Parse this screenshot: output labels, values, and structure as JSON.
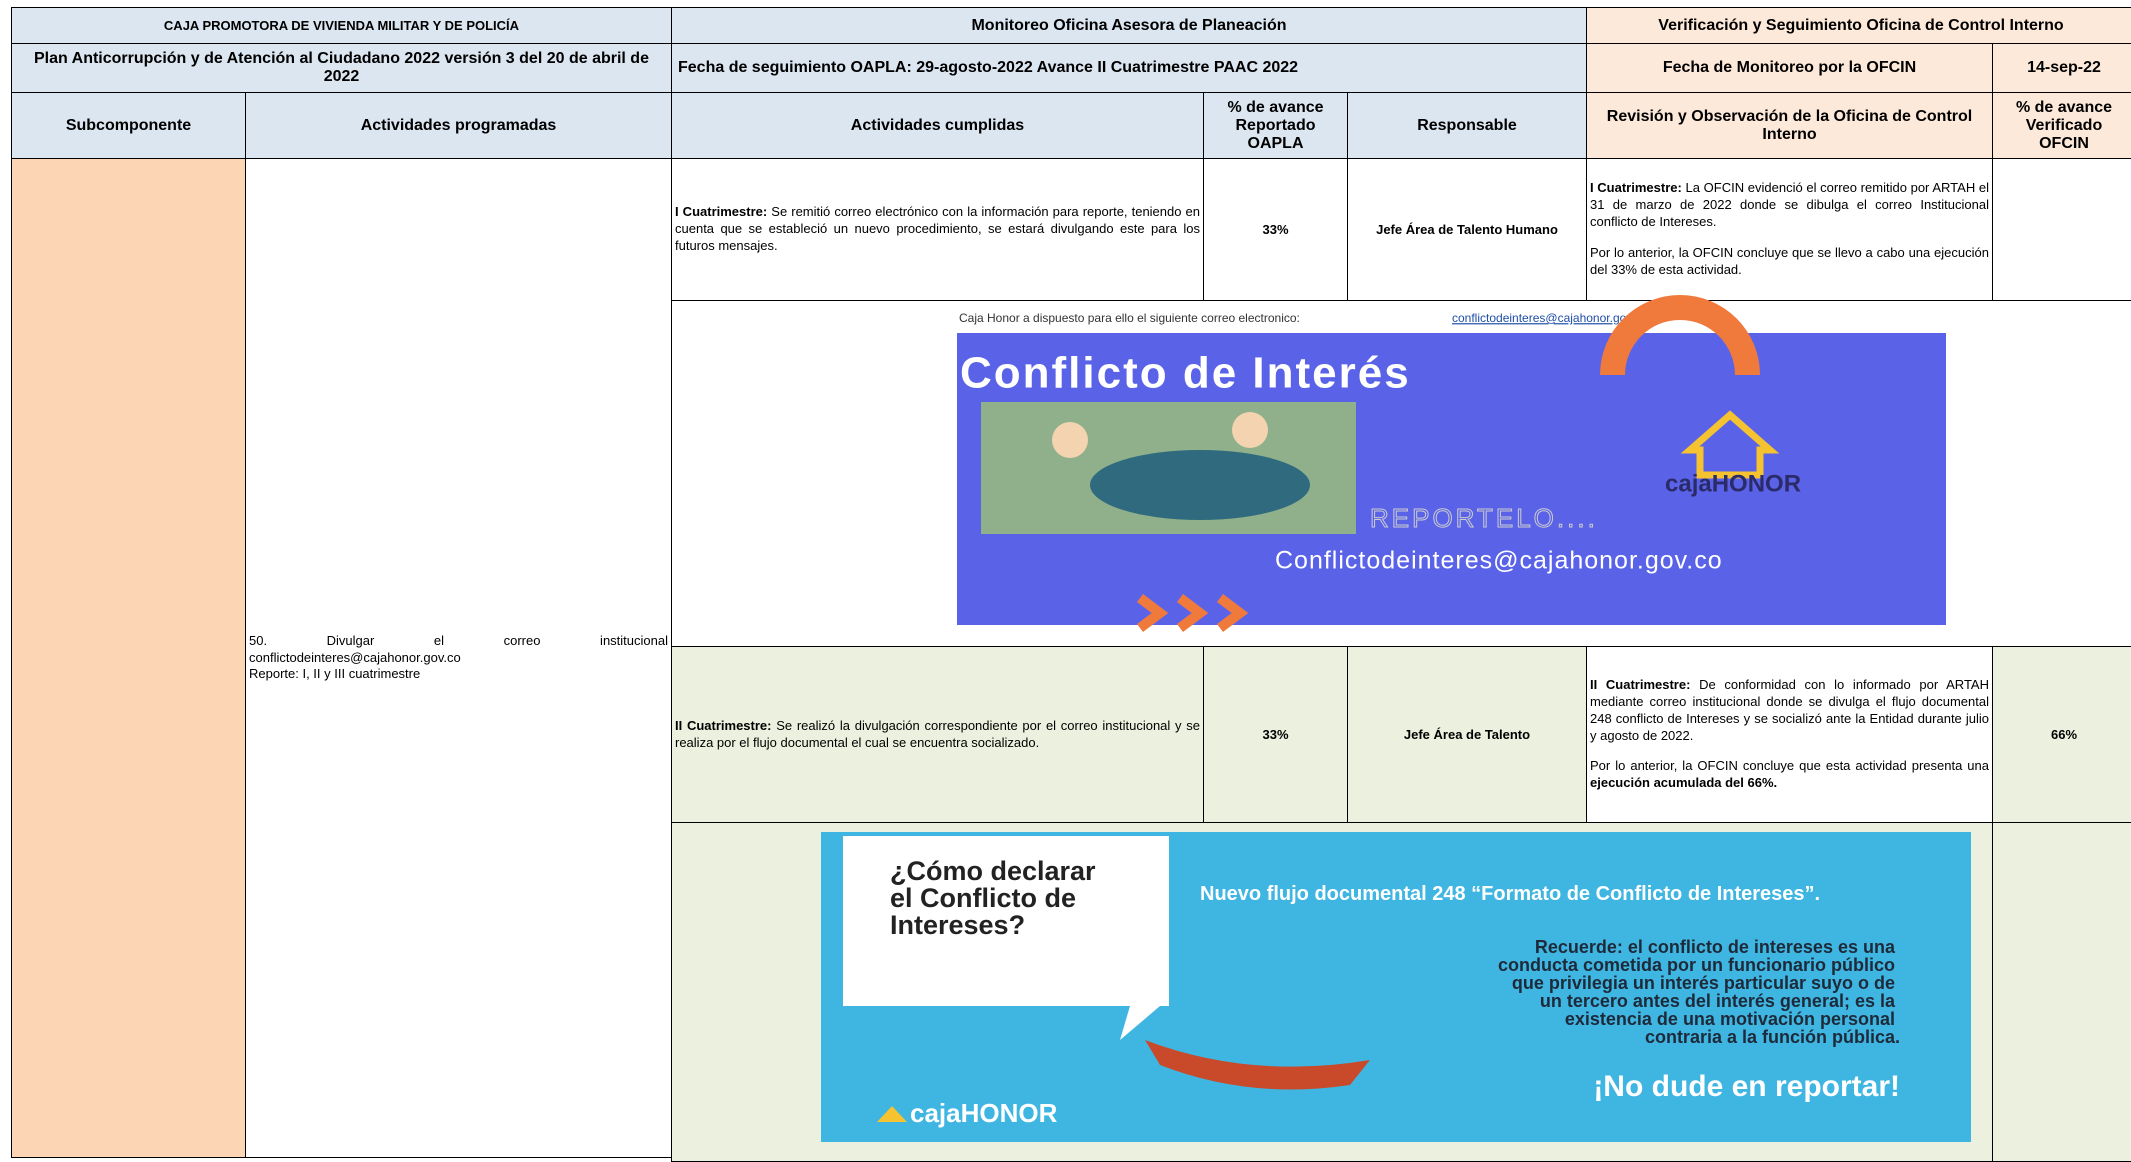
{
  "header": {
    "entity": "CAJA PROMOTORA DE VIVIENDA MILITAR Y DE POLICÍA",
    "monitoring": "Monitoreo Oficina Asesora de Planeación",
    "verification": "Verificación y Seguimiento Oficina de Control Interno",
    "plan": "Plan Anticorrupción y de Atención al Ciudadano  2022 versión 3 del 20 de abril de 2022",
    "follow_up_date": "Fecha de seguimiento OAPLA:    29-agosto-2022 Avance II Cuatrimestre PAAC 2022",
    "ofcin_date_label": "Fecha de Monitoreo por la OFCIN",
    "ofcin_date": "14-sep-22"
  },
  "columns": [
    "Subcomponente",
    "Actividades programadas",
    "Actividades cumplidas",
    "% de avance Reportado OAPLA",
    "Responsable",
    "Revisión y Observación de la Oficina de Control Interno",
    "% de avance Verificado OFCIN"
  ],
  "activity": {
    "line1": "50.        Divulgar        el        correo        institucional",
    "line2": "conflictodeinteres@cajahonor.gov.co",
    "line3": "Reporte: I, II y III cuatrimestre"
  },
  "rows": [
    {
      "done": {
        "label": "I Cuatrimestre:",
        "text": " Se remitió correo electrónico con la información para reporte, teniendo en cuenta que se estableció un nuevo procedimiento, se estará divulgando este para los futuros mensajes."
      },
      "percent": "33%",
      "responsible": "Jefe Área de Talento Humano",
      "observation": {
        "label": "I Cuatrimestre:",
        "text": " La OFCIN evidenció el correo remitido por ARTAH el 31 de marzo de 2022  donde se dibulga  el correo Institucional conflicto de Intereses.",
        "conclusion": "Por lo anterior, la OFCIN concluye  que se llevo a cabo una ejecución del 33% de esta actividad."
      }
    },
    {
      "done": {
        "label": "II Cuatrimestre:",
        "text": " Se realizó la divulgación correspondiente por el correo institucional y se realiza por el flujo documental el cual se encuentra socializado."
      },
      "percent": "33%",
      "responsible": "Jefe Área de Talento",
      "observation": {
        "label": "II Cuatrimestre:",
        "text": " De conformidad con lo informado por ARTAH mediante correo institucional donde se divulga el flujo documental 248 conflicto de Intereses y se socializó ante la Entidad durante julio y agosto de 2022.",
        "conclusion": "Por lo anterior, la OFCIN concluye que esta actividad presenta una ",
        "conclusion_bold": "ejecución acumulada del 66%."
      },
      "verified": "66%"
    }
  ],
  "image1": {
    "caption": "Caja Honor a dispuesto para ello el siguiente correo electronico:",
    "link": "conflictodeinteres@cajahonor.gov.co",
    "title": "Conflicto de Interés",
    "report": "REPORTELO....",
    "email": "Conflictodeinteres@cajahonor.gov.co",
    "logo": "cajaHONOR"
  },
  "image2": {
    "question": [
      "¿Cómo declarar",
      "el Conflicto de",
      "Intereses?"
    ],
    "flow": "Nuevo flujo documental 248 “Formato de Conflicto de Intereses”.",
    "reminder": [
      "Recuerde: el conflicto de intereses es una",
      "conducta cometida por un funcionario público",
      "que privilegia un interés particular suyo o de",
      "un tercero antes del interés general; es la",
      "existencia de una motivación personal",
      "contraria a la función pública."
    ],
    "cta": "¡No dude en reportar!",
    "logo": "cajaHONOR"
  }
}
